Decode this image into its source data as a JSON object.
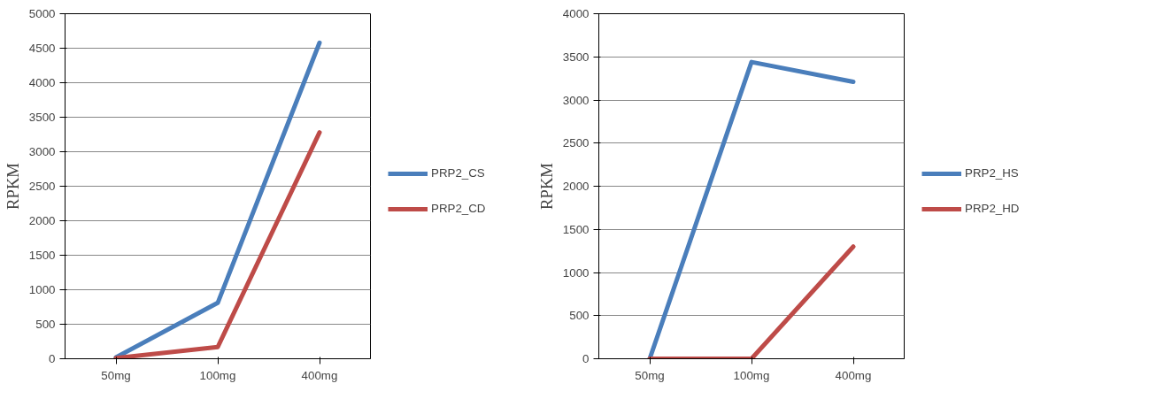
{
  "chart_data": [
    {
      "type": "line",
      "ylabel": "RPKM",
      "categories": [
        "50mg",
        "100mg",
        "400mg"
      ],
      "ylim": [
        0,
        5000
      ],
      "yticks": [
        0,
        500,
        1000,
        1500,
        2000,
        2500,
        3000,
        3500,
        4000,
        4500,
        5000
      ],
      "grid": "y",
      "legend": "right",
      "series": [
        {
          "name": "PRP2_CS",
          "color": "#4a7ebb",
          "values": [
            20,
            810,
            4580
          ]
        },
        {
          "name": "PRP2_CD",
          "color": "#be4b48",
          "values": [
            10,
            170,
            3280
          ]
        }
      ]
    },
    {
      "type": "line",
      "ylabel": "RPKM",
      "categories": [
        "50mg",
        "100mg",
        "400mg"
      ],
      "ylim": [
        0,
        4000
      ],
      "yticks": [
        0,
        500,
        1000,
        1500,
        2000,
        2500,
        3000,
        3500,
        4000
      ],
      "grid": "y",
      "legend": "right",
      "series": [
        {
          "name": "PRP2_HS",
          "color": "#4a7ebb",
          "values": [
            0,
            3440,
            3210
          ]
        },
        {
          "name": "PRP2_HD",
          "color": "#be4b48",
          "values": [
            0,
            0,
            1300
          ]
        }
      ]
    }
  ]
}
